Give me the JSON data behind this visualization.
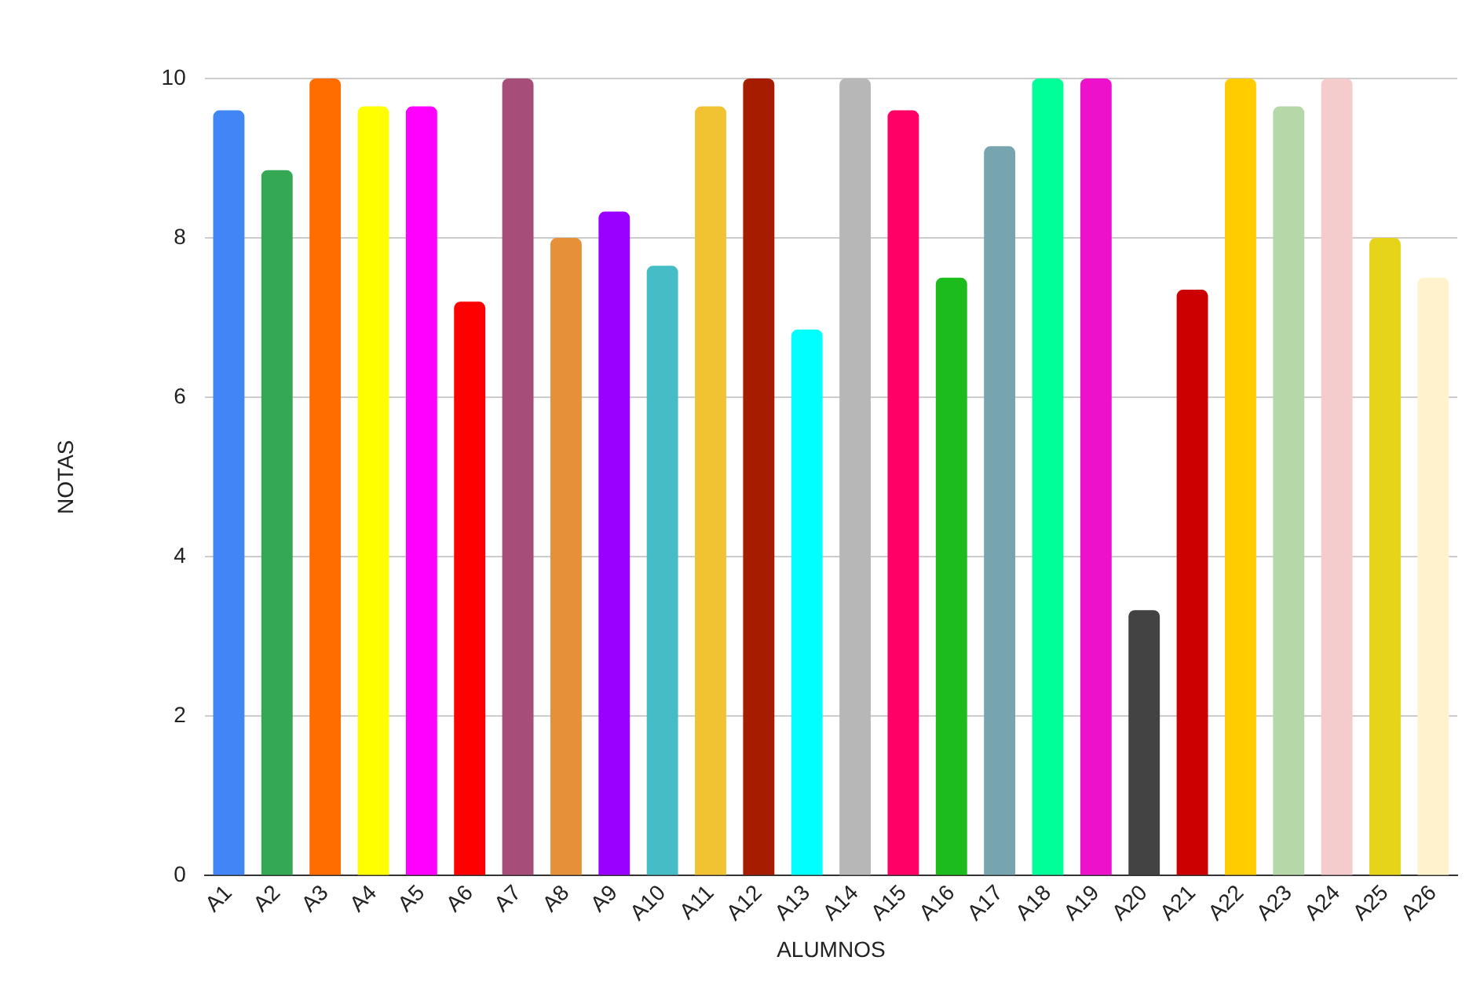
{
  "chart_data": {
    "type": "bar",
    "xlabel": "ALUMNOS",
    "ylabel": "NOTAS",
    "categories": [
      "A1",
      "A2",
      "A3",
      "A4",
      "A5",
      "A6",
      "A7",
      "A8",
      "A9",
      "A10",
      "A11",
      "A12",
      "A13",
      "A14",
      "A15",
      "A16",
      "A17",
      "A18",
      "A19",
      "A20",
      "A21",
      "A22",
      "A23",
      "A24",
      "A25",
      "A26"
    ],
    "values": [
      9.6,
      8.85,
      10,
      9.65,
      9.65,
      7.2,
      10,
      8,
      8.33,
      7.65,
      9.65,
      10,
      6.85,
      10,
      9.6,
      7.5,
      9.15,
      10,
      10,
      3.33,
      7.35,
      10,
      9.65,
      10,
      8,
      7.5
    ],
    "colors": [
      "#4285f4",
      "#34a853",
      "#ff6d01",
      "#ffff00",
      "#ff00ff",
      "#ff0000",
      "#a64d79",
      "#e69138",
      "#9900ff",
      "#46bdc6",
      "#f1c232",
      "#a61c00",
      "#00ffff",
      "#b7b7b7",
      "#ff0066",
      "#1bbc1b",
      "#76a5af",
      "#00ff99",
      "#ee11cc",
      "#434343",
      "#cc0000",
      "#ffcc00",
      "#b6d7a8",
      "#f4cccc",
      "#e6d41a",
      "#fff2cc"
    ],
    "ylim": [
      0,
      10
    ],
    "yticks": [
      0,
      2,
      4,
      6,
      8,
      10
    ],
    "grid": "y"
  }
}
